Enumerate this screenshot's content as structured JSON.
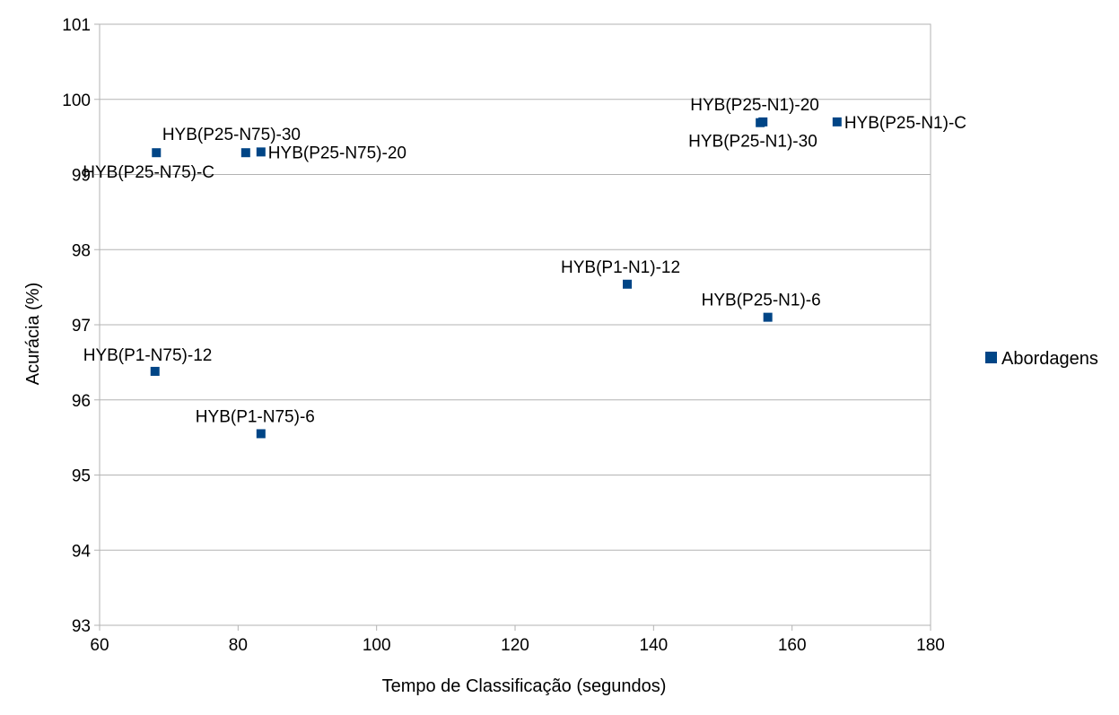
{
  "chart_data": {
    "type": "scatter",
    "title": "",
    "xlabel": "Tempo de Classificação (segundos)",
    "ylabel": "Acurácia (%)",
    "xlim": [
      60,
      180
    ],
    "ylim": [
      93,
      101
    ],
    "xticks": [
      60,
      80,
      100,
      120,
      140,
      160,
      180
    ],
    "yticks": [
      93,
      94,
      95,
      96,
      97,
      98,
      99,
      100,
      101
    ],
    "grid": true,
    "legend_position": "right",
    "series": [
      {
        "name": "Abordagens",
        "color": "#004586",
        "points": [
          {
            "label": "HYB(P25-N75)-C",
            "x": 68.2,
            "y": 99.29
          },
          {
            "label": "HYB(P25-N75)-30",
            "x": 81.1,
            "y": 99.29
          },
          {
            "label": "HYB(P25-N75)-20",
            "x": 83.3,
            "y": 99.3
          },
          {
            "label": "HYB(P1-N75)-12",
            "x": 68.0,
            "y": 96.38
          },
          {
            "label": "HYB(P1-N75)-6",
            "x": 83.3,
            "y": 95.55
          },
          {
            "label": "HYB(P1-N1)-12",
            "x": 136.2,
            "y": 97.54
          },
          {
            "label": "HYB(P25-N1)-6",
            "x": 156.5,
            "y": 97.1
          },
          {
            "label": "HYB(P25-N1)-20",
            "x": 155.8,
            "y": 99.7
          },
          {
            "label": "HYB(P25-N1)-30",
            "x": 155.4,
            "y": 99.69
          },
          {
            "label": "HYB(P25-N1)-C",
            "x": 166.5,
            "y": 99.7
          }
        ]
      }
    ]
  }
}
